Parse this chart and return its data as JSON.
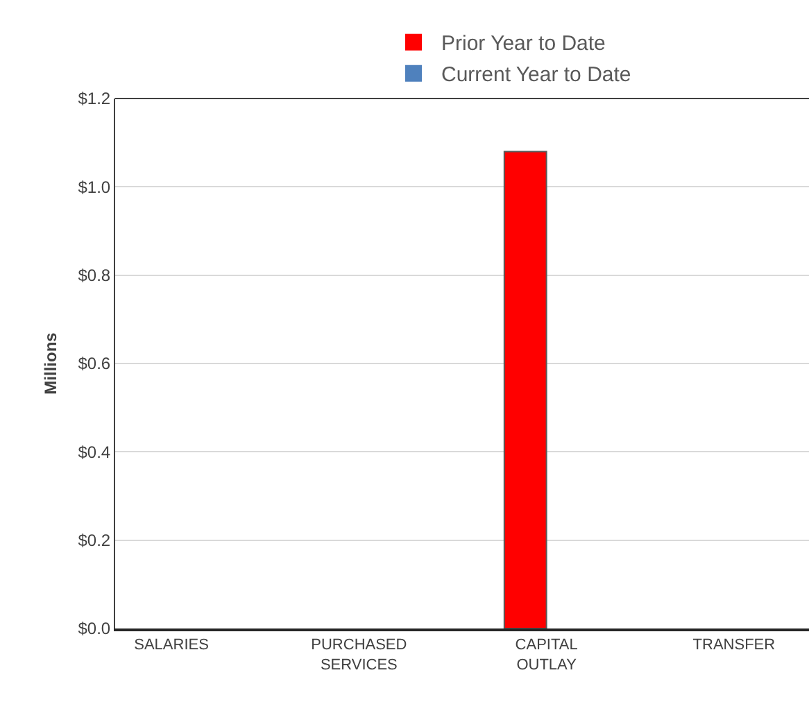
{
  "chart_data": {
    "type": "bar",
    "ylabel": "Millions",
    "categories": [
      "SALARIES",
      "PURCHASED SERVICES",
      "CAPITAL OUTLAY",
      "TRANSFER"
    ],
    "series": [
      {
        "name": "Prior Year to Date",
        "color": "#ff0000",
        "values": [
          0,
          0,
          1.08,
          0
        ]
      },
      {
        "name": "Current Year to Date",
        "color": "#4f81bd",
        "values": [
          0,
          0,
          0,
          0
        ]
      }
    ],
    "ylim": [
      0,
      1.2
    ],
    "yticks": [
      {
        "value": 0,
        "label": "$0.0"
      },
      {
        "value": 0.2,
        "label": "$0.2"
      },
      {
        "value": 0.4,
        "label": "$0.4"
      },
      {
        "value": 0.6,
        "label": "$0.6"
      },
      {
        "value": 0.8,
        "label": "$0.8"
      },
      {
        "value": 1.0,
        "label": "$1.0"
      },
      {
        "value": 1.2,
        "label": "$1.2"
      }
    ],
    "grid": "y",
    "legend": "top"
  }
}
